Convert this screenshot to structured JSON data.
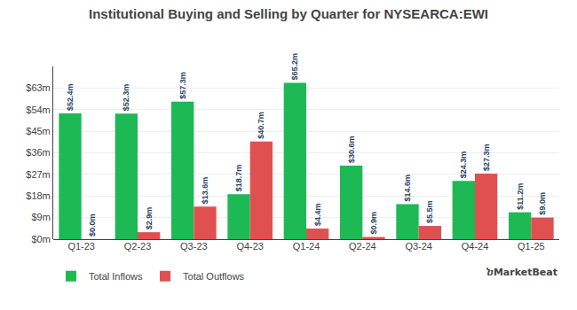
{
  "chart_data": {
    "type": "bar",
    "title": "Institutional Buying and Selling by Quarter for NYSEARCA:EWI",
    "categories": [
      "Q1-23",
      "Q2-23",
      "Q3-23",
      "Q4-23",
      "Q1-24",
      "Q2-24",
      "Q3-24",
      "Q4-24",
      "Q1-25"
    ],
    "series": [
      {
        "name": "Total Inflows",
        "color": "#1db954",
        "values": [
          52.4,
          52.3,
          57.3,
          18.7,
          65.2,
          30.6,
          14.6,
          24.3,
          11.2
        ],
        "value_labels": [
          "$52.4m",
          "$52.3m",
          "$57.3m",
          "$18.7m",
          "$65.2m",
          "$30.6m",
          "$14.6m",
          "$24.3m",
          "$11.2m"
        ]
      },
      {
        "name": "Total Outflows",
        "color": "#e05050",
        "values": [
          0.0,
          2.9,
          13.6,
          40.7,
          4.4,
          0.9,
          5.5,
          27.3,
          9.0
        ],
        "value_labels": [
          "$0.0m",
          "$2.9m",
          "$13.6m",
          "$40.7m",
          "$4.4m",
          "$0.9m",
          "$5.5m",
          "$27.3m",
          "$9.0m"
        ]
      }
    ],
    "ylim": [
      0,
      72
    ],
    "yticks": [
      {
        "value": 0,
        "label": "$0m"
      },
      {
        "value": 9,
        "label": "$9m"
      },
      {
        "value": 18,
        "label": "$18m"
      },
      {
        "value": 27,
        "label": "$27m"
      },
      {
        "value": 36,
        "label": "$36m"
      },
      {
        "value": 45,
        "label": "$45m"
      },
      {
        "value": 54,
        "label": "$54m"
      },
      {
        "value": 63,
        "label": "$63m"
      }
    ],
    "grid": true,
    "data_labels": true,
    "legend": "bottom",
    "annotations": [
      "ⴆMarketBeat"
    ]
  }
}
